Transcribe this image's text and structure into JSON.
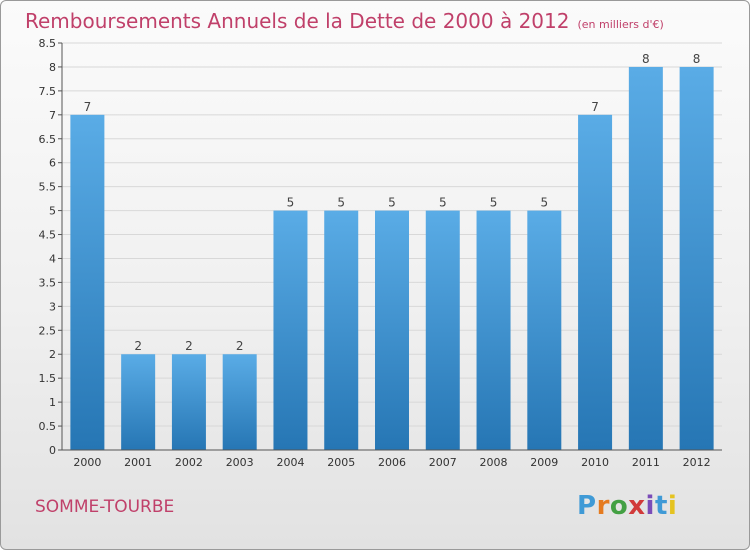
{
  "title": "Remboursements Annuels de la Dette de 2000 à 2012",
  "unit_note": "(en milliers d'€)",
  "place_name": "SOMME-TOURBE",
  "logo": {
    "letters": [
      "P",
      "r",
      "o",
      "x",
      "i",
      "t",
      "i"
    ],
    "colors": [
      "#3f9ad6",
      "#e57b20",
      "#43a043",
      "#d13a3a",
      "#7a4cb8",
      "#3f9ad6",
      "#e5c320"
    ]
  },
  "colors": {
    "accent": "#c0406a",
    "bar_top": "#5aace6",
    "bar_bottom": "#2676b4",
    "grid": "#d8d8d8"
  },
  "chart_data": {
    "type": "bar",
    "categories": [
      "2000",
      "2001",
      "2002",
      "2003",
      "2004",
      "2005",
      "2006",
      "2007",
      "2008",
      "2009",
      "2010",
      "2011",
      "2012"
    ],
    "values": [
      7,
      2,
      2,
      2,
      5,
      5,
      5,
      5,
      5,
      5,
      7,
      8,
      8
    ],
    "data_labels": [
      "7",
      "2",
      "2",
      "2",
      "5",
      "5",
      "5",
      "5",
      "5",
      "5",
      "7",
      "8",
      "8"
    ],
    "ylim": [
      0,
      8.5
    ],
    "yticks": [
      0,
      0.5,
      1,
      1.5,
      2,
      2.5,
      3,
      3.5,
      4,
      4.5,
      5,
      5.5,
      6,
      6.5,
      7,
      7.5,
      8,
      8.5
    ],
    "ytick_labels": [
      "0",
      "0.5",
      "1",
      "1.5",
      "2",
      "2.5",
      "3",
      "3.5",
      "4",
      "4.5",
      "5",
      "5.5",
      "6",
      "6.5",
      "7",
      "7.5",
      "8",
      "8.5"
    ],
    "grid": true
  }
}
